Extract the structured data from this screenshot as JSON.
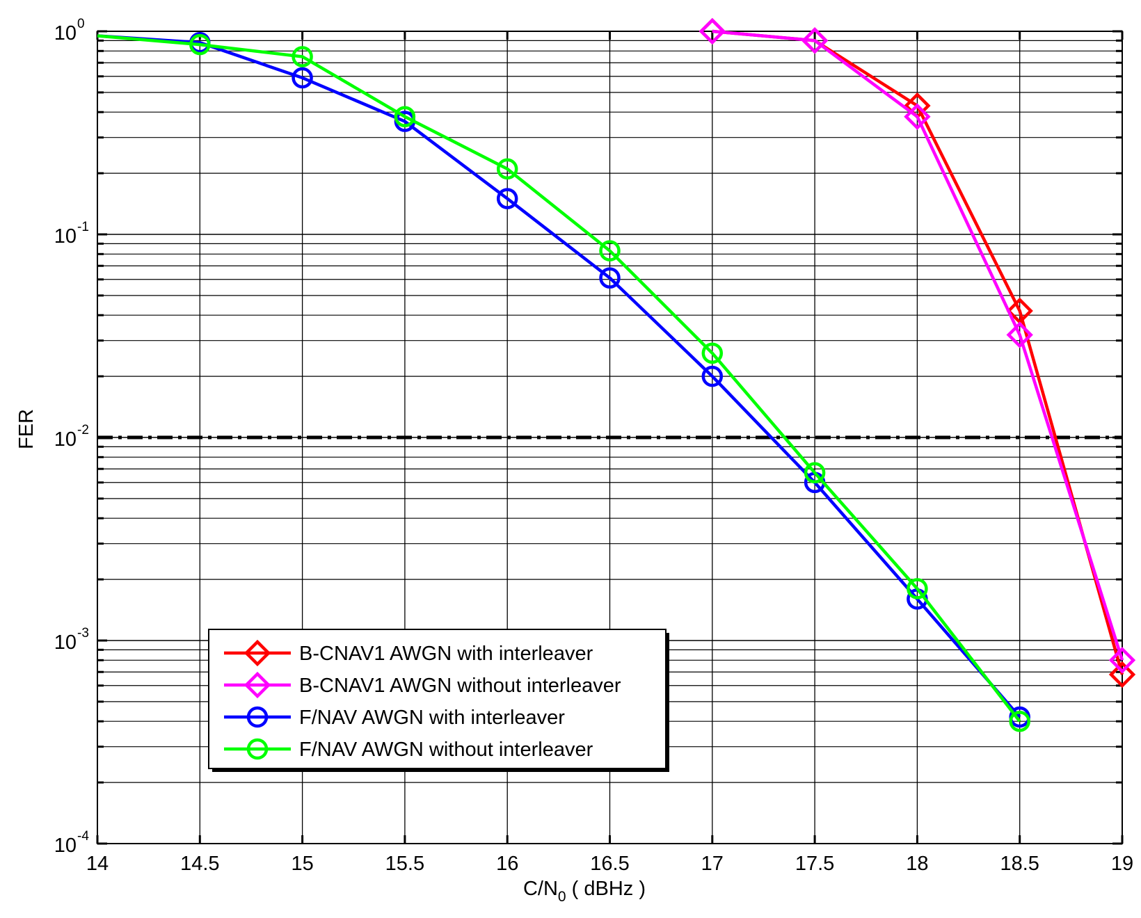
{
  "chart_data": {
    "type": "line",
    "title": "",
    "xlabel_main": "C/N",
    "xlabel_sub": "0",
    "xlabel_unit": " ( dBHz )",
    "ylabel": "FER",
    "xlim": [
      14,
      19
    ],
    "ylim": [
      0.0001,
      1
    ],
    "y_scale": "log",
    "grid": true,
    "legend_position": "bottom-left",
    "x_ticks": [
      "14",
      "14.5",
      "15",
      "15.5",
      "16",
      "16.5",
      "17",
      "17.5",
      "18",
      "18.5",
      "19"
    ],
    "y_tick_base": "10",
    "y_tick_exponents": [
      "0",
      "-1",
      "-2",
      "-3",
      "-4"
    ],
    "threshold": {
      "y": 0.01,
      "style": "dash-dot",
      "color": "#000000"
    },
    "series": [
      {
        "name": "B-CNAV1 AWGN with interleaver",
        "color": "#ff0000",
        "marker": "diamond",
        "x": [
          17,
          17.5,
          18,
          18.5,
          19
        ],
        "y": [
          1.0,
          0.9,
          0.43,
          0.042,
          0.00068
        ]
      },
      {
        "name": "B-CNAV1 AWGN without interleaver",
        "color": "#ff00ff",
        "marker": "diamond",
        "x": [
          17,
          17.5,
          18,
          18.5,
          19
        ],
        "y": [
          1.0,
          0.9,
          0.38,
          0.032,
          0.0008
        ]
      },
      {
        "name": "F/NAV AWGN with interleaver",
        "color": "#0000ff",
        "marker": "circle",
        "x": [
          14,
          14.5,
          15,
          15.5,
          16,
          16.5,
          17,
          17.5,
          18,
          18.5
        ],
        "y": [
          0.95,
          0.88,
          0.59,
          0.36,
          0.15,
          0.061,
          0.02,
          0.006,
          0.0016,
          0.00042
        ]
      },
      {
        "name": "F/NAV AWGN without interleaver",
        "color": "#00ff00",
        "marker": "circle",
        "x": [
          14,
          14.5,
          15,
          15.5,
          16,
          16.5,
          17,
          17.5,
          18,
          18.5
        ],
        "y": [
          0.95,
          0.86,
          0.75,
          0.38,
          0.21,
          0.083,
          0.026,
          0.0067,
          0.0018,
          0.0004
        ]
      }
    ]
  }
}
